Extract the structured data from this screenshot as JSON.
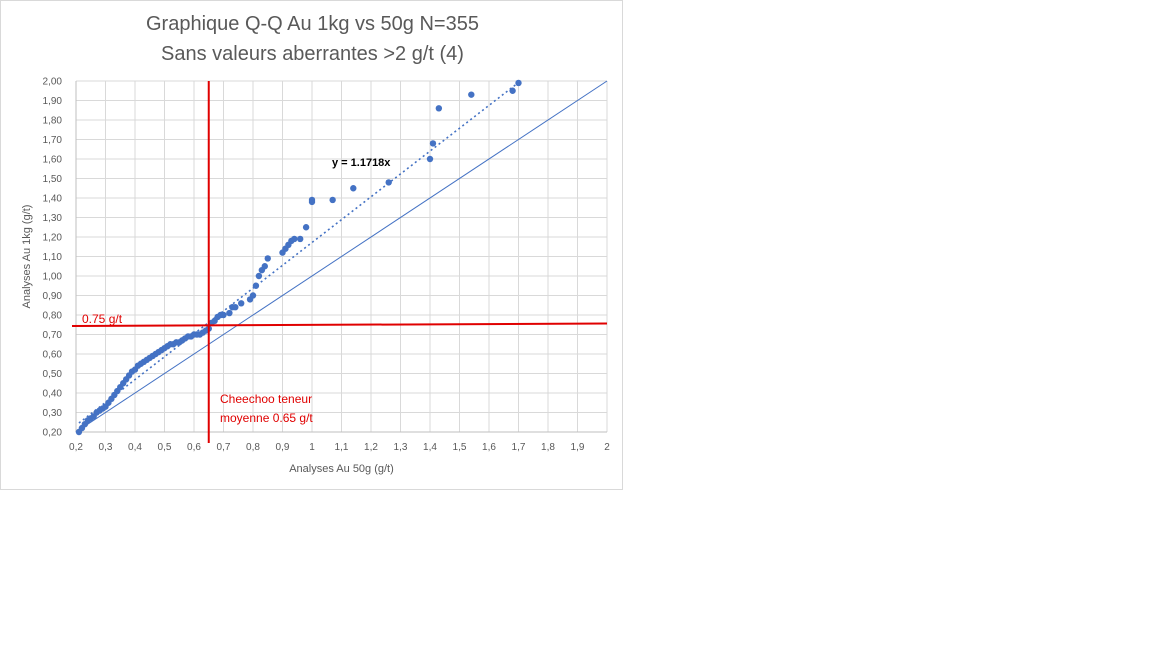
{
  "chart_data": {
    "type": "scatter",
    "title": "Graphique Q-Q  Au 1kg vs 50g     N=355",
    "subtitle": "Sans valeurs aberrantes >2 g/t (4)",
    "xlabel": "Analyses Au 50g (g/t)",
    "ylabel": "Analyses Au 1kg (g/t)",
    "xlim": [
      0.2,
      2.0
    ],
    "ylim": [
      0.2,
      2.0
    ],
    "x_ticks": [
      "0,2",
      "0,3",
      "0,4",
      "0,5",
      "0,6",
      "0,7",
      "0,8",
      "0,9",
      "1",
      "1,1",
      "1,2",
      "1,3",
      "1,4",
      "1,5",
      "1,6",
      "1,7",
      "1,8",
      "1,9",
      "2"
    ],
    "y_ticks": [
      "0,20",
      "0,30",
      "0,40",
      "0,50",
      "0,60",
      "0,70",
      "0,80",
      "0,90",
      "1,00",
      "1,10",
      "1,20",
      "1,30",
      "1,40",
      "1,50",
      "1,60",
      "1,70",
      "1,80",
      "1,90",
      "2,00"
    ],
    "grid": true,
    "point_color": "#4472c4",
    "reference_color": "#e00000",
    "series": [
      {
        "x": [
          0.21,
          0.22,
          0.23,
          0.24,
          0.25,
          0.26,
          0.27,
          0.28,
          0.29,
          0.3,
          0.31,
          0.32,
          0.33,
          0.34,
          0.35,
          0.36,
          0.37,
          0.38,
          0.39,
          0.4,
          0.41,
          0.42,
          0.43,
          0.44,
          0.45,
          0.46,
          0.47,
          0.48,
          0.49,
          0.5,
          0.51,
          0.52,
          0.53,
          0.54,
          0.55,
          0.56,
          0.57,
          0.58,
          0.59,
          0.6,
          0.61,
          0.62,
          0.63,
          0.64,
          0.65,
          0.66,
          0.67,
          0.68,
          0.69,
          0.7,
          0.72,
          0.73,
          0.74,
          0.76,
          0.79,
          0.8,
          0.81,
          0.82,
          0.83,
          0.84,
          0.85,
          0.9,
          0.91,
          0.92,
          0.93,
          0.94,
          0.96,
          0.98,
          1.0,
          1.0,
          1.07,
          1.14,
          1.26,
          1.4,
          1.41,
          1.43,
          1.54,
          1.68,
          1.7
        ],
        "y": [
          0.2,
          0.22,
          0.24,
          0.26,
          0.27,
          0.28,
          0.3,
          0.31,
          0.32,
          0.33,
          0.35,
          0.37,
          0.39,
          0.41,
          0.43,
          0.45,
          0.47,
          0.49,
          0.51,
          0.52,
          0.54,
          0.55,
          0.56,
          0.57,
          0.58,
          0.59,
          0.6,
          0.61,
          0.62,
          0.63,
          0.64,
          0.65,
          0.65,
          0.66,
          0.66,
          0.67,
          0.68,
          0.69,
          0.69,
          0.7,
          0.7,
          0.7,
          0.71,
          0.72,
          0.73,
          0.76,
          0.77,
          0.79,
          0.8,
          0.8,
          0.81,
          0.84,
          0.84,
          0.86,
          0.88,
          0.9,
          0.95,
          1.0,
          1.03,
          1.05,
          1.09,
          1.12,
          1.14,
          1.16,
          1.18,
          1.19,
          1.19,
          1.25,
          1.38,
          1.39,
          1.39,
          1.45,
          1.48,
          1.6,
          1.68,
          1.86,
          1.93,
          1.95,
          1.99
        ]
      }
    ],
    "trendline": {
      "slope": 1.1718,
      "label": "y = 1.1718x"
    },
    "reference_lines": {
      "horizontal": {
        "y": 0.75,
        "label": "0.75 g/t"
      },
      "vertical": {
        "x": 0.65,
        "label_line1": "Cheechoo teneur",
        "label_line2": "moyenne 0.65 g/t"
      }
    }
  }
}
